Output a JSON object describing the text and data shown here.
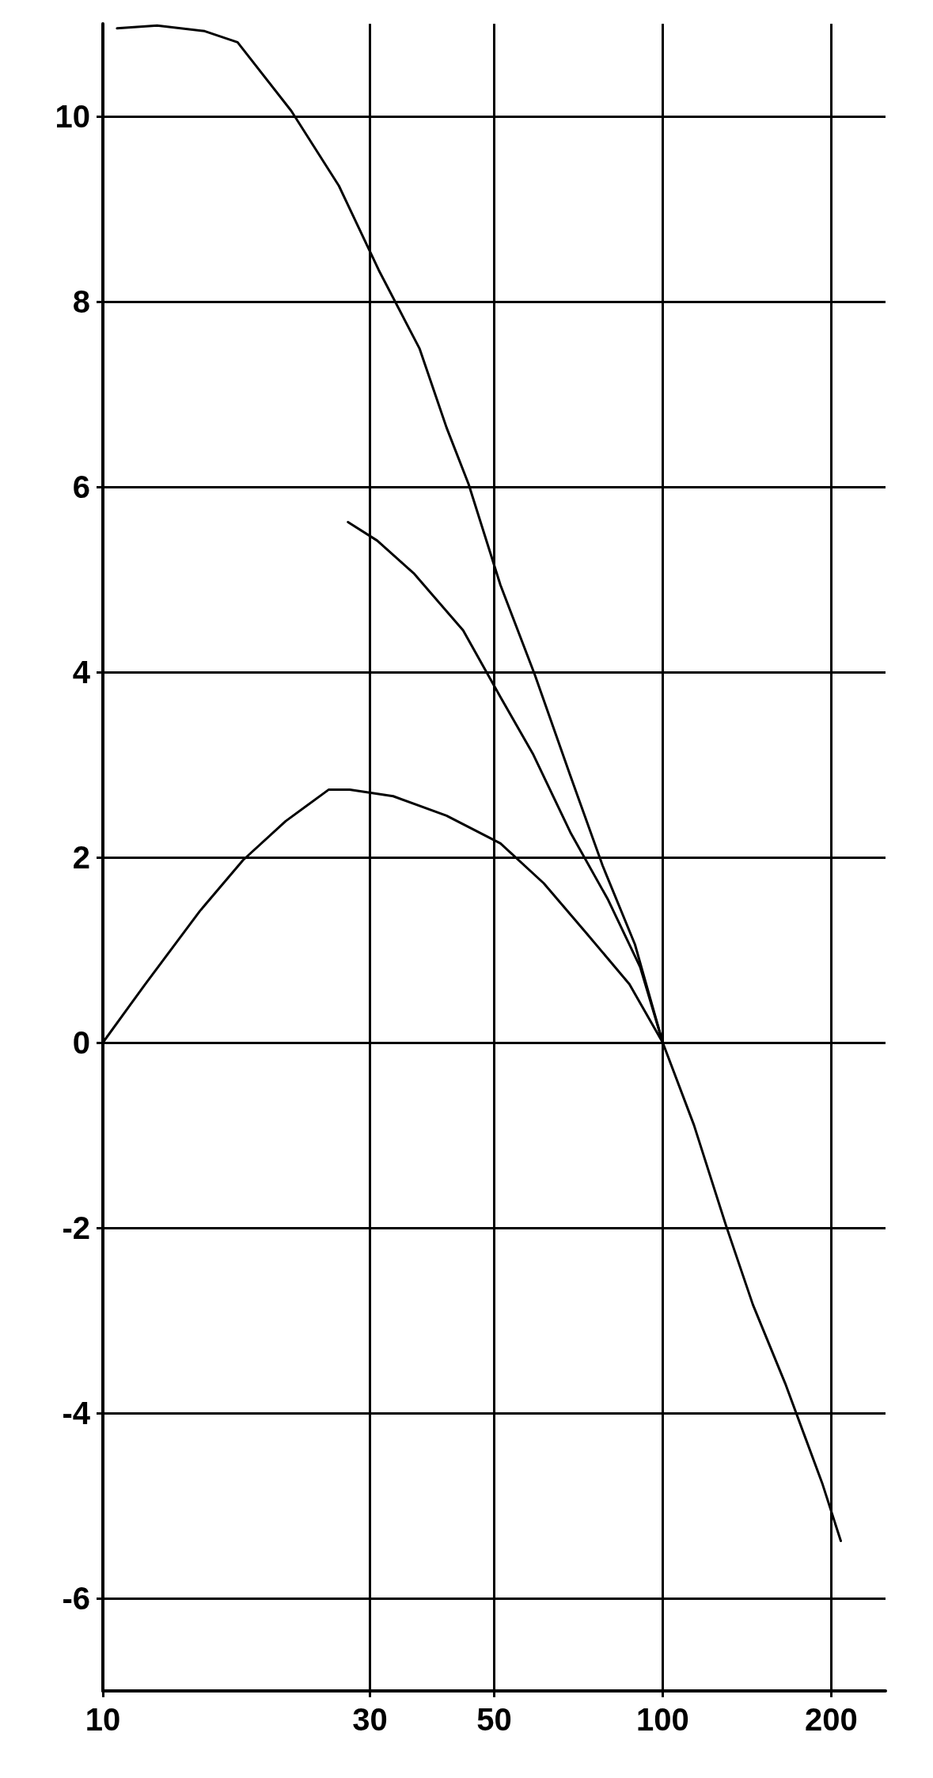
{
  "chart_data": {
    "type": "line",
    "log": "x",
    "xlim": [
      10,
      250
    ],
    "xticks": [
      10,
      30,
      50,
      100,
      200
    ],
    "ylim": [
      -7,
      11
    ],
    "yticks": [
      -6,
      -4,
      -2,
      0,
      2,
      4,
      6,
      8,
      10
    ],
    "grid": true,
    "marker": "none",
    "line_style": "solid",
    "series": [
      {
        "color": "#000000",
        "x": [
          10.6,
          12.5,
          15.2,
          17.4,
          21.7,
          26.4,
          31.1,
          36.8,
          41.1,
          45,
          51.3,
          59.1,
          68.4,
          78.1,
          89.2,
          100,
          113.7,
          129.8,
          144.9,
          165.5,
          193,
          208
        ],
        "values": [
          10.95,
          10.98,
          10.92,
          10.8,
          10.06,
          9.25,
          8.34,
          7.49,
          6.64,
          6.03,
          4.94,
          3.97,
          2.88,
          1.91,
          1.06,
          0,
          -0.89,
          -1.98,
          -2.83,
          -3.68,
          -4.77,
          -5.38
        ]
      },
      {
        "color": "#000000",
        "x": [
          27.4,
          30.9,
          36,
          44,
          51.3,
          58.6,
          68.4,
          79.9,
          91.2,
          100
        ],
        "values": [
          5.62,
          5.42,
          5.06,
          4.45,
          3.73,
          3.12,
          2.27,
          1.54,
          0.81,
          0
        ]
      },
      {
        "color": "#000000",
        "x": [
          10,
          11.9,
          14.9,
          17.8,
          21.2,
          25.3,
          27.6,
          33,
          41.1,
          51.3,
          61.3,
          73.1,
          87.2,
          100
        ],
        "values": [
          0,
          0.63,
          1.42,
          1.97,
          2.39,
          2.73,
          2.73,
          2.66,
          2.45,
          2.15,
          1.72,
          1.18,
          0.63,
          0
        ]
      }
    ]
  }
}
